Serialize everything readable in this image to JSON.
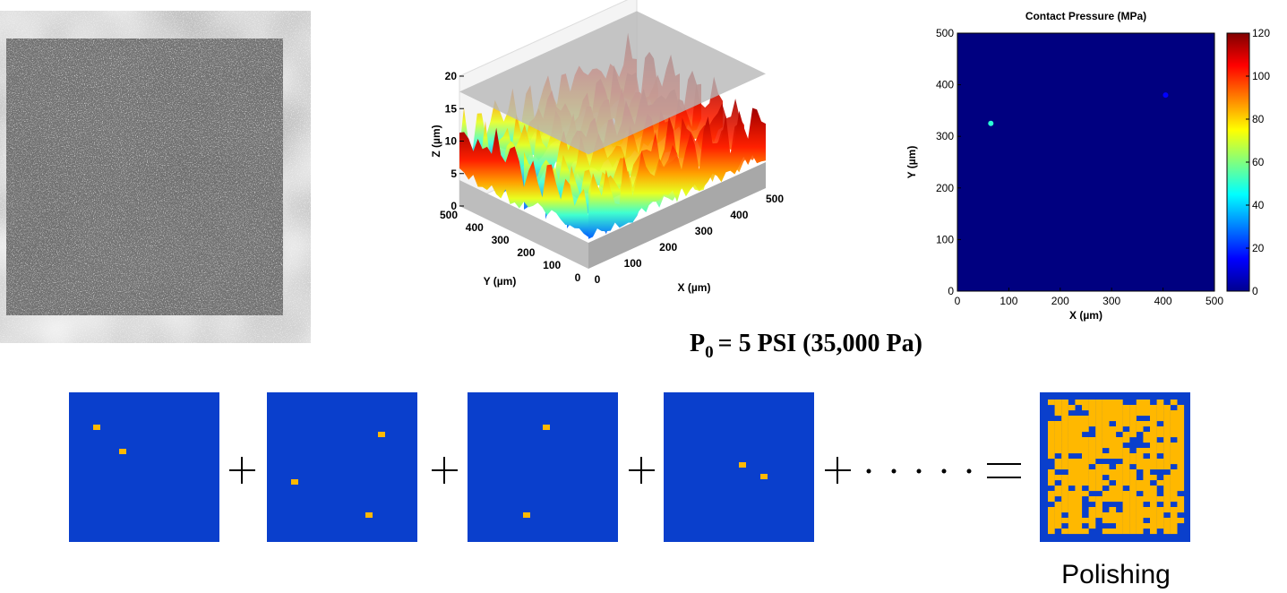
{
  "surface_plot": {
    "zlabel": "Z (µm)",
    "xlabel": "X (µm)",
    "ylabel": "Y (µm)",
    "xlim": [
      0,
      500
    ],
    "ylim": [
      0,
      500
    ],
    "zlim": [
      0,
      20
    ],
    "xticks": [
      0,
      100,
      200,
      300,
      400,
      500
    ],
    "yticks": [
      0,
      100,
      200,
      300,
      400,
      500
    ],
    "zticks": [
      0,
      5,
      10,
      15,
      20
    ]
  },
  "pressure_map": {
    "title": "Contact Pressure (MPa)",
    "xlabel": "X (µm)",
    "ylabel": "Y (µm)",
    "xlim": [
      0,
      500
    ],
    "ylim": [
      0,
      500
    ],
    "xticks": [
      0,
      100,
      200,
      300,
      400,
      500
    ],
    "yticks": [
      0,
      100,
      200,
      300,
      400,
      500
    ],
    "clim": [
      0,
      120
    ],
    "colorbar_ticks": [
      0,
      20,
      40,
      60,
      80,
      100,
      120
    ],
    "points": [
      {
        "x": 65,
        "y": 325,
        "value": 50
      },
      {
        "x": 405,
        "y": 380,
        "value": 15
      }
    ]
  },
  "pressure_caption": {
    "symbol": "P",
    "subscript": "0",
    "text": "= 5 PSI (35,000 Pa)"
  },
  "result_label": "Polishing"
}
